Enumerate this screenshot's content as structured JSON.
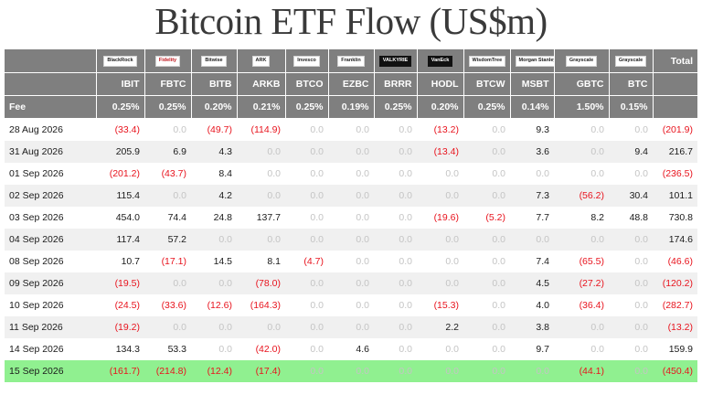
{
  "title": "Bitcoin ETF Flow (US$m)",
  "fee_label": "Fee",
  "total_label": "Total",
  "columns": [
    {
      "ticker": "IBIT",
      "issuer_logo": "BlackRock",
      "fee": "0.25%"
    },
    {
      "ticker": "FBTC",
      "issuer_logo": "Fidelity",
      "fee": "0.25%"
    },
    {
      "ticker": "BITB",
      "issuer_logo": "Bitwise",
      "fee": "0.20%"
    },
    {
      "ticker": "ARKB",
      "issuer_logo": "ARK",
      "fee": "0.21%"
    },
    {
      "ticker": "BTCO",
      "issuer_logo": "Invesco",
      "fee": "0.25%"
    },
    {
      "ticker": "EZBC",
      "issuer_logo": "Franklin",
      "fee": "0.19%"
    },
    {
      "ticker": "BRRR",
      "issuer_logo": "VALKYRIE",
      "fee": "0.25%"
    },
    {
      "ticker": "HODL",
      "issuer_logo": "VanEck",
      "fee": "0.20%"
    },
    {
      "ticker": "BTCW",
      "issuer_logo": "WisdomTree",
      "fee": "0.25%"
    },
    {
      "ticker": "MSBT",
      "issuer_logo": "Morgan Stanley",
      "fee": "0.14%"
    },
    {
      "ticker": "GBTC",
      "issuer_logo": "Grayscale",
      "fee": "1.50%"
    },
    {
      "ticker": "BTC",
      "issuer_logo": "Grayscale",
      "fee": "0.15%"
    }
  ],
  "rows": [
    {
      "date": "28 Aug 2026",
      "values": [
        "(33.4)",
        "0.0",
        "(49.7)",
        "(114.9)",
        "0.0",
        "0.0",
        "0.0",
        "(13.2)",
        "0.0",
        "9.3",
        "0.0",
        "0.0"
      ],
      "total": "(201.9)",
      "highlight": false
    },
    {
      "date": "31 Aug 2026",
      "values": [
        "205.9",
        "6.9",
        "4.3",
        "0.0",
        "0.0",
        "0.0",
        "0.0",
        "(13.4)",
        "0.0",
        "3.6",
        "0.0",
        "9.4"
      ],
      "total": "216.7",
      "highlight": false
    },
    {
      "date": "01 Sep 2026",
      "values": [
        "(201.2)",
        "(43.7)",
        "8.4",
        "0.0",
        "0.0",
        "0.0",
        "0.0",
        "0.0",
        "0.0",
        "0.0",
        "0.0",
        "0.0"
      ],
      "total": "(236.5)",
      "highlight": false
    },
    {
      "date": "02 Sep 2026",
      "values": [
        "115.4",
        "0.0",
        "4.2",
        "0.0",
        "0.0",
        "0.0",
        "0.0",
        "0.0",
        "0.0",
        "7.3",
        "(56.2)",
        "30.4"
      ],
      "total": "101.1",
      "highlight": false
    },
    {
      "date": "03 Sep 2026",
      "values": [
        "454.0",
        "74.4",
        "24.8",
        "137.7",
        "0.0",
        "0.0",
        "0.0",
        "(19.6)",
        "(5.2)",
        "7.7",
        "8.2",
        "48.8"
      ],
      "total": "730.8",
      "highlight": false
    },
    {
      "date": "04 Sep 2026",
      "values": [
        "117.4",
        "57.2",
        "0.0",
        "0.0",
        "0.0",
        "0.0",
        "0.0",
        "0.0",
        "0.0",
        "0.0",
        "0.0",
        "0.0"
      ],
      "total": "174.6",
      "highlight": false
    },
    {
      "date": "08 Sep 2026",
      "values": [
        "10.7",
        "(17.1)",
        "14.5",
        "8.1",
        "(4.7)",
        "0.0",
        "0.0",
        "0.0",
        "0.0",
        "7.4",
        "(65.5)",
        "0.0"
      ],
      "total": "(46.6)",
      "highlight": false
    },
    {
      "date": "09 Sep 2026",
      "values": [
        "(19.5)",
        "0.0",
        "0.0",
        "(78.0)",
        "0.0",
        "0.0",
        "0.0",
        "0.0",
        "0.0",
        "4.5",
        "(27.2)",
        "0.0"
      ],
      "total": "(120.2)",
      "highlight": false
    },
    {
      "date": "10 Sep 2026",
      "values": [
        "(24.5)",
        "(33.6)",
        "(12.6)",
        "(164.3)",
        "0.0",
        "0.0",
        "0.0",
        "(15.3)",
        "0.0",
        "4.0",
        "(36.4)",
        "0.0"
      ],
      "total": "(282.7)",
      "highlight": false
    },
    {
      "date": "11 Sep 2026",
      "values": [
        "(19.2)",
        "0.0",
        "0.0",
        "0.0",
        "0.0",
        "0.0",
        "0.0",
        "2.2",
        "0.0",
        "3.8",
        "0.0",
        "0.0"
      ],
      "total": "(13.2)",
      "highlight": false
    },
    {
      "date": "14 Sep 2026",
      "values": [
        "134.3",
        "53.3",
        "0.0",
        "(42.0)",
        "0.0",
        "4.6",
        "0.0",
        "0.0",
        "0.0",
        "9.7",
        "0.0",
        "0.0"
      ],
      "total": "159.9",
      "highlight": false
    },
    {
      "date": "15 Sep 2026",
      "values": [
        "(161.7)",
        "(214.8)",
        "(12.4)",
        "(17.4)",
        "0.0",
        "0.0",
        "0.0",
        "0.0",
        "0.0",
        "0.0",
        "(44.1)",
        "0.0"
      ],
      "total": "(450.4)",
      "highlight": true
    }
  ],
  "colors": {
    "header_bg": "#7f7f7f",
    "negative": "#e8141e",
    "zero": "#c4c4c4",
    "highlight": "#90f090"
  }
}
